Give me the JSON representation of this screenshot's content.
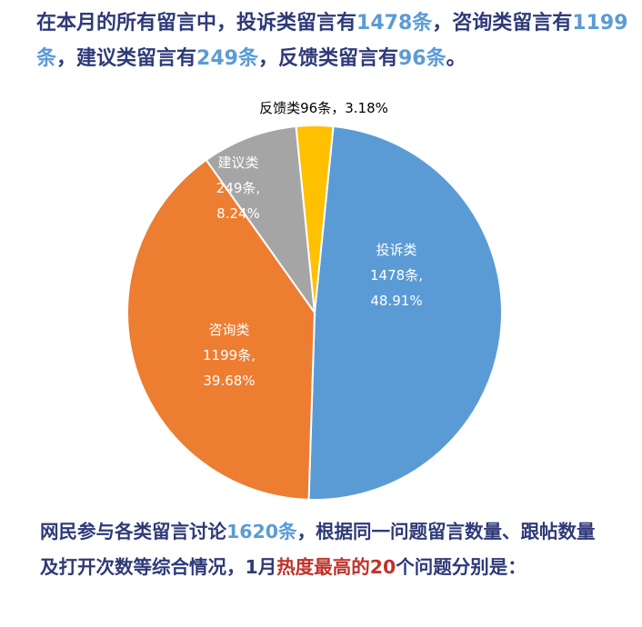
{
  "summary_top": {
    "p1": "在本月的所有留言中，投诉类留言有",
    "n1": "1478条",
    "p2": "，咨询类留言有",
    "n2": "1199条",
    "p3": "，建议类留言有",
    "n3": "249条",
    "p4": "，反馈类留言有",
    "n4": "96条",
    "p5": "。"
  },
  "summary_bottom": {
    "p1": "网民参与各类留言讨论",
    "n1": "1620条",
    "p2": "，根据同一问题留言数量、跟帖数量及打开次数等综合情况，1月",
    "hl": "热度最高的",
    "n2": "20",
    "p3": "个问题分别是："
  },
  "chart_data": {
    "type": "pie",
    "categories": [
      "投诉类",
      "咨询类",
      "建议类",
      "反馈类"
    ],
    "values": [
      1478,
      1199,
      249,
      96
    ],
    "percentages": [
      48.91,
      39.68,
      8.24,
      3.18
    ],
    "colors": [
      "#5b9bd5",
      "#ed7d31",
      "#a5a5a5",
      "#ffc000"
    ],
    "data_labels": [
      [
        "投诉类",
        "1478条,",
        "48.91%"
      ],
      [
        "咨询类",
        "1199条,",
        "39.68%"
      ],
      [
        "建议类",
        "249条,",
        "8.24%"
      ],
      [
        "反馈类96条，3.18%"
      ]
    ]
  }
}
